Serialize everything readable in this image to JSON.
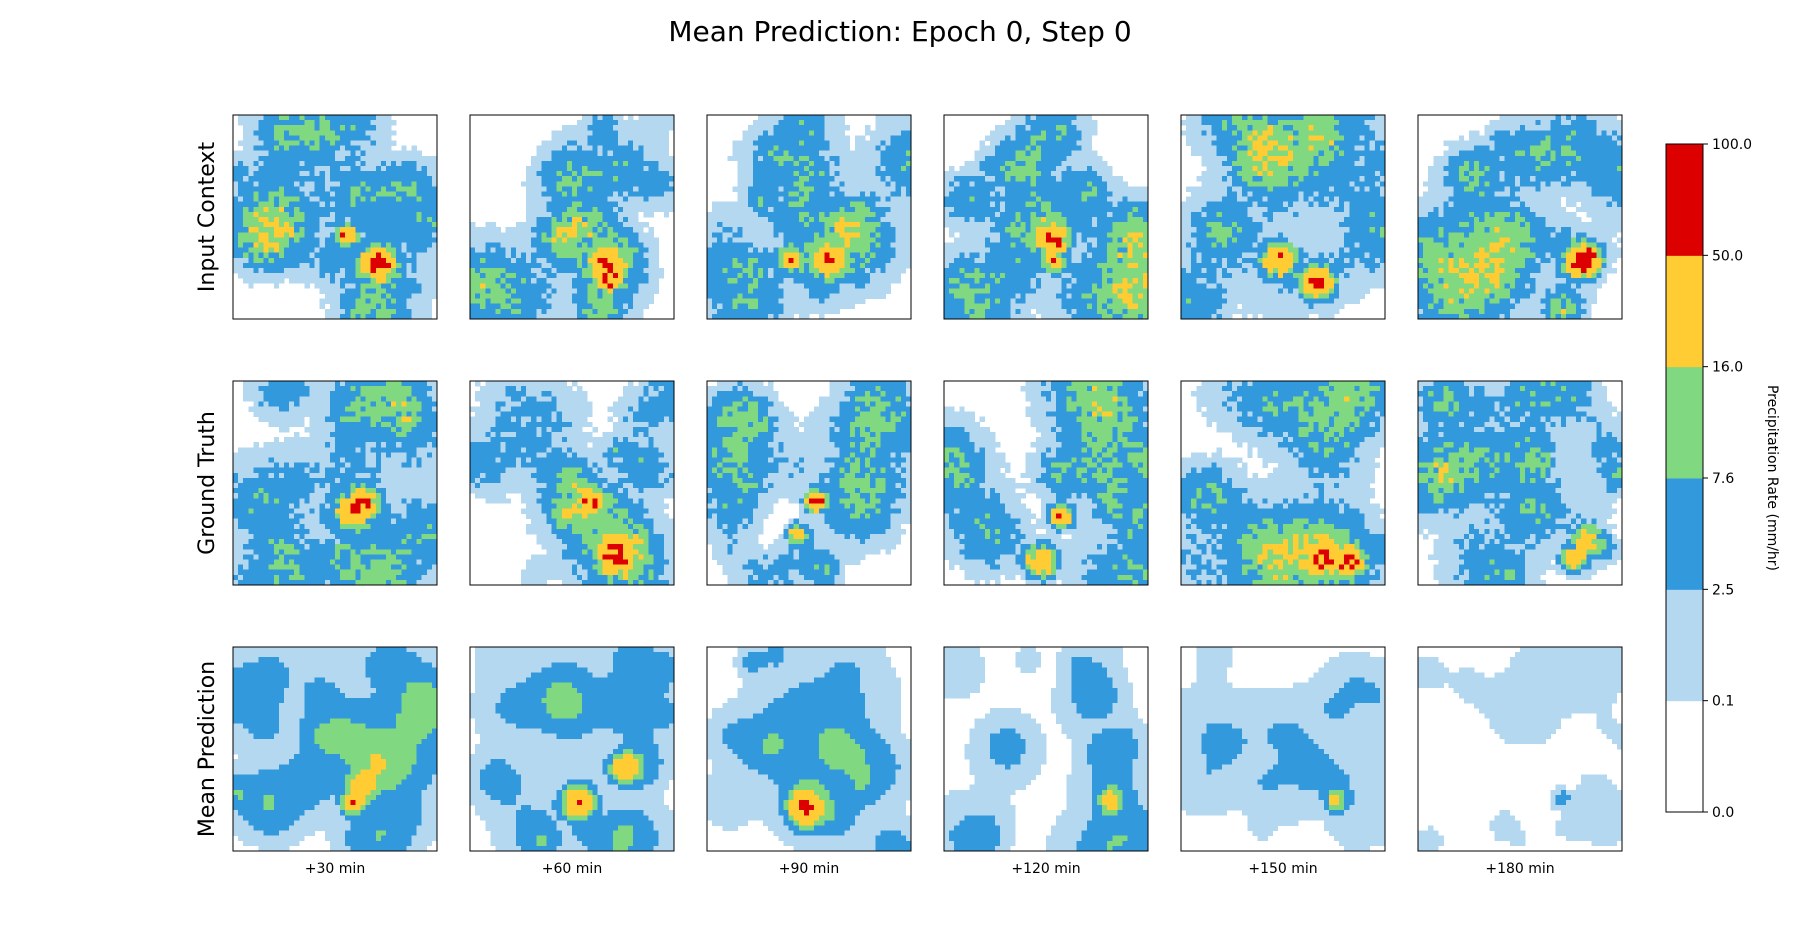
{
  "chart_data": {
    "type": "heatmap",
    "title": "Mean Prediction: Epoch 0, Step 0",
    "rows": [
      "Input Context",
      "Ground Truth",
      "Mean Prediction"
    ],
    "columns": [
      "+30 min",
      "+60 min",
      "+90 min",
      "+120 min",
      "+150 min",
      "+180 min"
    ],
    "colorbar": {
      "label": "Precipitation Rate (mm/hr)",
      "boundaries": [
        0.0,
        0.1,
        2.5,
        7.6,
        16.0,
        50.0,
        100.0
      ],
      "tick_labels": [
        "0.0",
        "0.1",
        "2.5",
        "7.6",
        "16.0",
        "50.0",
        "100.0"
      ],
      "colors": [
        "#ffffff",
        "#b3d8f0",
        "#3399dd",
        "#80d880",
        "#ffcc33",
        "#dd0000"
      ]
    },
    "grid": false
  }
}
